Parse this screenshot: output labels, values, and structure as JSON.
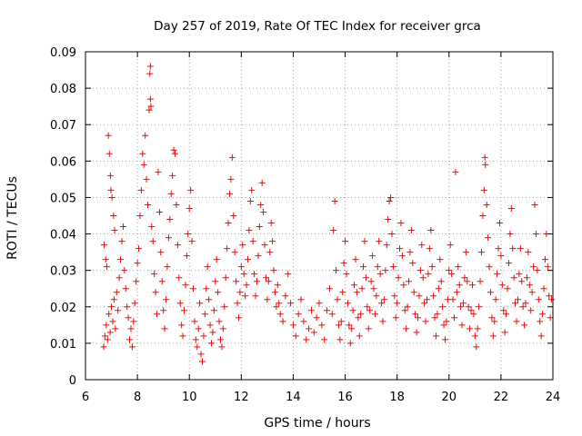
{
  "chart_data": {
    "type": "scatter",
    "title": "Day 257 of 2019, Rate Of TEC Index for receiver grca",
    "xlabel": "GPS time / hours",
    "ylabel": "ROTI / TECUs",
    "xlim": [
      6,
      24
    ],
    "ylim": [
      0,
      0.09
    ],
    "xticks": [
      6,
      8,
      10,
      12,
      14,
      16,
      18,
      20,
      22,
      24
    ],
    "yticks": [
      0,
      0.01,
      0.02,
      0.03,
      0.04,
      0.05,
      0.06,
      0.07,
      0.08,
      0.09
    ],
    "xtick_labels": [
      "6",
      "8",
      "10",
      "12",
      "14",
      "16",
      "18",
      "20",
      "22",
      "24"
    ],
    "ytick_labels": [
      "0",
      "0.01",
      "0.02",
      "0.03",
      "0.04",
      "0.05",
      "0.06",
      "0.07",
      "0.08",
      "0.09"
    ],
    "grid": true,
    "marker": "plus",
    "color": "#ff0000",
    "points": [
      [
        6.7,
        0.009
      ],
      [
        6.75,
        0.012
      ],
      [
        6.8,
        0.015
      ],
      [
        6.85,
        0.011
      ],
      [
        6.9,
        0.018
      ],
      [
        6.95,
        0.013
      ],
      [
        7.0,
        0.02
      ],
      [
        7.05,
        0.016
      ],
      [
        7.1,
        0.022
      ],
      [
        7.15,
        0.014
      ],
      [
        6.72,
        0.037
      ],
      [
        6.78,
        0.033
      ],
      [
        6.82,
        0.031
      ],
      [
        6.88,
        0.067
      ],
      [
        6.92,
        0.062
      ],
      [
        6.96,
        0.056
      ],
      [
        6.98,
        0.052
      ],
      [
        7.02,
        0.05
      ],
      [
        7.08,
        0.045
      ],
      [
        7.12,
        0.041
      ],
      [
        7.2,
        0.024
      ],
      [
        7.25,
        0.019
      ],
      [
        7.3,
        0.028
      ],
      [
        7.35,
        0.033
      ],
      [
        7.4,
        0.038
      ],
      [
        7.45,
        0.042
      ],
      [
        7.5,
        0.03
      ],
      [
        7.55,
        0.025
      ],
      [
        7.6,
        0.02
      ],
      [
        7.65,
        0.017
      ],
      [
        7.7,
        0.011
      ],
      [
        7.75,
        0.014
      ],
      [
        7.8,
        0.009
      ],
      [
        7.85,
        0.016
      ],
      [
        7.9,
        0.021
      ],
      [
        7.95,
        0.027
      ],
      [
        8.0,
        0.032
      ],
      [
        8.05,
        0.036
      ],
      [
        8.1,
        0.045
      ],
      [
        8.15,
        0.052
      ],
      [
        8.2,
        0.062
      ],
      [
        8.25,
        0.059
      ],
      [
        8.3,
        0.067
      ],
      [
        8.35,
        0.055
      ],
      [
        8.4,
        0.048
      ],
      [
        8.45,
        0.074
      ],
      [
        8.5,
        0.077
      ],
      [
        8.48,
        0.084
      ],
      [
        8.5,
        0.086
      ],
      [
        8.52,
        0.075
      ],
      [
        8.55,
        0.042
      ],
      [
        8.6,
        0.038
      ],
      [
        8.65,
        0.029
      ],
      [
        8.7,
        0.024
      ],
      [
        8.75,
        0.018
      ],
      [
        8.8,
        0.057
      ],
      [
        8.85,
        0.046
      ],
      [
        8.9,
        0.035
      ],
      [
        8.95,
        0.027
      ],
      [
        9.0,
        0.019
      ],
      [
        9.05,
        0.014
      ],
      [
        9.1,
        0.022
      ],
      [
        9.15,
        0.031
      ],
      [
        9.2,
        0.039
      ],
      [
        9.25,
        0.044
      ],
      [
        9.3,
        0.051
      ],
      [
        9.35,
        0.056
      ],
      [
        9.4,
        0.063
      ],
      [
        9.45,
        0.062
      ],
      [
        9.5,
        0.048
      ],
      [
        9.55,
        0.037
      ],
      [
        9.6,
        0.028
      ],
      [
        9.65,
        0.021
      ],
      [
        9.7,
        0.015
      ],
      [
        9.75,
        0.012
      ],
      [
        9.8,
        0.019
      ],
      [
        9.85,
        0.026
      ],
      [
        9.9,
        0.034
      ],
      [
        9.95,
        0.04
      ],
      [
        10.0,
        0.047
      ],
      [
        10.05,
        0.052
      ],
      [
        10.1,
        0.038
      ],
      [
        10.15,
        0.025
      ],
      [
        10.2,
        0.016
      ],
      [
        10.25,
        0.011
      ],
      [
        10.3,
        0.009
      ],
      [
        10.35,
        0.014
      ],
      [
        10.4,
        0.021
      ],
      [
        10.45,
        0.007
      ],
      [
        10.5,
        0.005
      ],
      [
        10.55,
        0.012
      ],
      [
        10.6,
        0.018
      ],
      [
        10.65,
        0.025
      ],
      [
        10.7,
        0.031
      ],
      [
        10.75,
        0.022
      ],
      [
        10.8,
        0.015
      ],
      [
        10.85,
        0.01
      ],
      [
        10.9,
        0.013
      ],
      [
        10.95,
        0.019
      ],
      [
        11.0,
        0.027
      ],
      [
        11.05,
        0.033
      ],
      [
        11.1,
        0.024
      ],
      [
        11.15,
        0.016
      ],
      [
        11.2,
        0.011
      ],
      [
        11.25,
        0.009
      ],
      [
        11.3,
        0.014
      ],
      [
        11.35,
        0.02
      ],
      [
        11.4,
        0.028
      ],
      [
        11.45,
        0.036
      ],
      [
        11.5,
        0.043
      ],
      [
        11.55,
        0.051
      ],
      [
        11.6,
        0.055
      ],
      [
        11.65,
        0.061
      ],
      [
        11.7,
        0.045
      ],
      [
        11.75,
        0.035
      ],
      [
        11.8,
        0.027
      ],
      [
        11.85,
        0.021
      ],
      [
        11.9,
        0.017
      ],
      [
        11.95,
        0.024
      ],
      [
        12.0,
        0.031
      ],
      [
        12.05,
        0.037
      ],
      [
        12.1,
        0.029
      ],
      [
        12.15,
        0.023
      ],
      [
        12.2,
        0.026
      ],
      [
        12.25,
        0.033
      ],
      [
        12.3,
        0.041
      ],
      [
        12.35,
        0.049
      ],
      [
        12.4,
        0.052
      ],
      [
        12.45,
        0.038
      ],
      [
        12.5,
        0.029
      ],
      [
        12.55,
        0.023
      ],
      [
        12.6,
        0.027
      ],
      [
        12.65,
        0.034
      ],
      [
        12.7,
        0.042
      ],
      [
        12.75,
        0.048
      ],
      [
        12.8,
        0.054
      ],
      [
        12.85,
        0.046
      ],
      [
        12.9,
        0.037
      ],
      [
        12.95,
        0.028
      ],
      [
        13.0,
        0.022
      ],
      [
        13.05,
        0.027
      ],
      [
        13.1,
        0.035
      ],
      [
        13.15,
        0.043
      ],
      [
        13.2,
        0.038
      ],
      [
        13.25,
        0.03
      ],
      [
        13.3,
        0.024
      ],
      [
        13.35,
        0.02
      ],
      [
        13.4,
        0.026
      ],
      [
        13.45,
        0.021
      ],
      [
        13.5,
        0.018
      ],
      [
        13.6,
        0.016
      ],
      [
        13.7,
        0.023
      ],
      [
        13.8,
        0.029
      ],
      [
        13.9,
        0.021
      ],
      [
        14.0,
        0.015
      ],
      [
        14.1,
        0.012
      ],
      [
        14.2,
        0.018
      ],
      [
        14.3,
        0.022
      ],
      [
        14.4,
        0.016
      ],
      [
        14.5,
        0.011
      ],
      [
        14.6,
        0.014
      ],
      [
        14.7,
        0.019
      ],
      [
        14.8,
        0.013
      ],
      [
        14.9,
        0.017
      ],
      [
        15.0,
        0.021
      ],
      [
        15.1,
        0.015
      ],
      [
        15.2,
        0.011
      ],
      [
        15.3,
        0.019
      ],
      [
        15.4,
        0.025
      ],
      [
        15.5,
        0.018
      ],
      [
        15.55,
        0.041
      ],
      [
        15.6,
        0.049
      ],
      [
        15.65,
        0.03
      ],
      [
        15.7,
        0.022
      ],
      [
        15.75,
        0.015
      ],
      [
        15.8,
        0.011
      ],
      [
        15.85,
        0.016
      ],
      [
        15.9,
        0.024
      ],
      [
        15.95,
        0.032
      ],
      [
        16.0,
        0.038
      ],
      [
        16.05,
        0.029
      ],
      [
        16.1,
        0.021
      ],
      [
        16.15,
        0.015
      ],
      [
        16.2,
        0.01
      ],
      [
        16.25,
        0.014
      ],
      [
        16.3,
        0.019
      ],
      [
        16.35,
        0.026
      ],
      [
        16.4,
        0.033
      ],
      [
        16.45,
        0.024
      ],
      [
        16.5,
        0.017
      ],
      [
        16.55,
        0.012
      ],
      [
        16.6,
        0.018
      ],
      [
        16.65,
        0.025
      ],
      [
        16.7,
        0.031
      ],
      [
        16.75,
        0.038
      ],
      [
        16.8,
        0.028
      ],
      [
        16.85,
        0.02
      ],
      [
        16.9,
        0.014
      ],
      [
        16.95,
        0.019
      ],
      [
        17.0,
        0.027
      ],
      [
        17.05,
        0.034
      ],
      [
        17.1,
        0.025
      ],
      [
        17.15,
        0.018
      ],
      [
        17.2,
        0.023
      ],
      [
        17.25,
        0.031
      ],
      [
        17.3,
        0.038
      ],
      [
        17.35,
        0.029
      ],
      [
        17.4,
        0.021
      ],
      [
        17.45,
        0.016
      ],
      [
        17.5,
        0.022
      ],
      [
        17.55,
        0.03
      ],
      [
        17.6,
        0.037
      ],
      [
        17.65,
        0.044
      ],
      [
        17.7,
        0.049
      ],
      [
        17.75,
        0.05
      ],
      [
        17.8,
        0.04
      ],
      [
        17.85,
        0.031
      ],
      [
        17.9,
        0.023
      ],
      [
        17.95,
        0.017
      ],
      [
        18.0,
        0.021
      ],
      [
        18.05,
        0.028
      ],
      [
        18.1,
        0.036
      ],
      [
        18.15,
        0.043
      ],
      [
        18.2,
        0.034
      ],
      [
        18.25,
        0.026
      ],
      [
        18.3,
        0.019
      ],
      [
        18.35,
        0.014
      ],
      [
        18.4,
        0.02
      ],
      [
        18.45,
        0.027
      ],
      [
        18.5,
        0.035
      ],
      [
        18.55,
        0.041
      ],
      [
        18.6,
        0.032
      ],
      [
        18.65,
        0.024
      ],
      [
        18.7,
        0.018
      ],
      [
        18.75,
        0.013
      ],
      [
        18.8,
        0.017
      ],
      [
        18.85,
        0.023
      ],
      [
        18.9,
        0.03
      ],
      [
        18.95,
        0.037
      ],
      [
        19.0,
        0.028
      ],
      [
        19.05,
        0.021
      ],
      [
        19.1,
        0.016
      ],
      [
        19.15,
        0.022
      ],
      [
        19.2,
        0.029
      ],
      [
        19.25,
        0.036
      ],
      [
        19.3,
        0.041
      ],
      [
        19.35,
        0.031
      ],
      [
        19.4,
        0.023
      ],
      [
        19.45,
        0.017
      ],
      [
        19.5,
        0.012
      ],
      [
        19.55,
        0.018
      ],
      [
        19.6,
        0.025
      ],
      [
        19.65,
        0.033
      ],
      [
        19.7,
        0.027
      ],
      [
        19.75,
        0.02
      ],
      [
        19.8,
        0.015
      ],
      [
        19.85,
        0.011
      ],
      [
        19.9,
        0.016
      ],
      [
        19.95,
        0.022
      ],
      [
        20.0,
        0.03
      ],
      [
        20.05,
        0.037
      ],
      [
        20.1,
        0.029
      ],
      [
        20.15,
        0.022
      ],
      [
        20.2,
        0.017
      ],
      [
        20.25,
        0.057
      ],
      [
        20.3,
        0.024
      ],
      [
        20.35,
        0.031
      ],
      [
        20.4,
        0.026
      ],
      [
        20.45,
        0.02
      ],
      [
        20.5,
        0.015
      ],
      [
        20.55,
        0.021
      ],
      [
        20.6,
        0.028
      ],
      [
        20.65,
        0.035
      ],
      [
        20.7,
        0.027
      ],
      [
        20.75,
        0.02
      ],
      [
        20.8,
        0.014
      ],
      [
        20.85,
        0.019
      ],
      [
        20.9,
        0.026
      ],
      [
        20.95,
        0.018
      ],
      [
        21.0,
        0.012
      ],
      [
        21.05,
        0.009
      ],
      [
        21.1,
        0.014
      ],
      [
        21.15,
        0.02
      ],
      [
        21.2,
        0.027
      ],
      [
        21.25,
        0.035
      ],
      [
        21.3,
        0.045
      ],
      [
        21.35,
        0.052
      ],
      [
        21.4,
        0.059
      ],
      [
        21.38,
        0.061
      ],
      [
        21.45,
        0.048
      ],
      [
        21.5,
        0.039
      ],
      [
        21.55,
        0.031
      ],
      [
        21.6,
        0.024
      ],
      [
        21.65,
        0.017
      ],
      [
        21.7,
        0.012
      ],
      [
        21.75,
        0.016
      ],
      [
        21.8,
        0.022
      ],
      [
        21.85,
        0.029
      ],
      [
        21.9,
        0.036
      ],
      [
        21.95,
        0.043
      ],
      [
        22.0,
        0.034
      ],
      [
        22.05,
        0.026
      ],
      [
        22.1,
        0.019
      ],
      [
        22.15,
        0.013
      ],
      [
        22.2,
        0.018
      ],
      [
        22.25,
        0.025
      ],
      [
        22.3,
        0.032
      ],
      [
        22.35,
        0.04
      ],
      [
        22.4,
        0.047
      ],
      [
        22.45,
        0.036
      ],
      [
        22.5,
        0.028
      ],
      [
        22.55,
        0.021
      ],
      [
        22.6,
        0.016
      ],
      [
        22.65,
        0.022
      ],
      [
        22.7,
        0.029
      ],
      [
        22.75,
        0.036
      ],
      [
        22.8,
        0.027
      ],
      [
        22.85,
        0.02
      ],
      [
        22.9,
        0.015
      ],
      [
        22.95,
        0.021
      ],
      [
        23.0,
        0.028
      ],
      [
        23.05,
        0.035
      ],
      [
        23.1,
        0.026
      ],
      [
        23.15,
        0.019
      ],
      [
        23.2,
        0.024
      ],
      [
        23.25,
        0.031
      ],
      [
        23.3,
        0.048
      ],
      [
        23.35,
        0.04
      ],
      [
        23.4,
        0.03
      ],
      [
        23.45,
        0.022
      ],
      [
        23.5,
        0.016
      ],
      [
        23.55,
        0.012
      ],
      [
        23.6,
        0.018
      ],
      [
        23.65,
        0.025
      ],
      [
        23.7,
        0.033
      ],
      [
        23.75,
        0.04
      ],
      [
        23.8,
        0.031
      ],
      [
        23.85,
        0.023
      ],
      [
        23.9,
        0.017
      ],
      [
        23.95,
        0.022
      ]
    ]
  }
}
